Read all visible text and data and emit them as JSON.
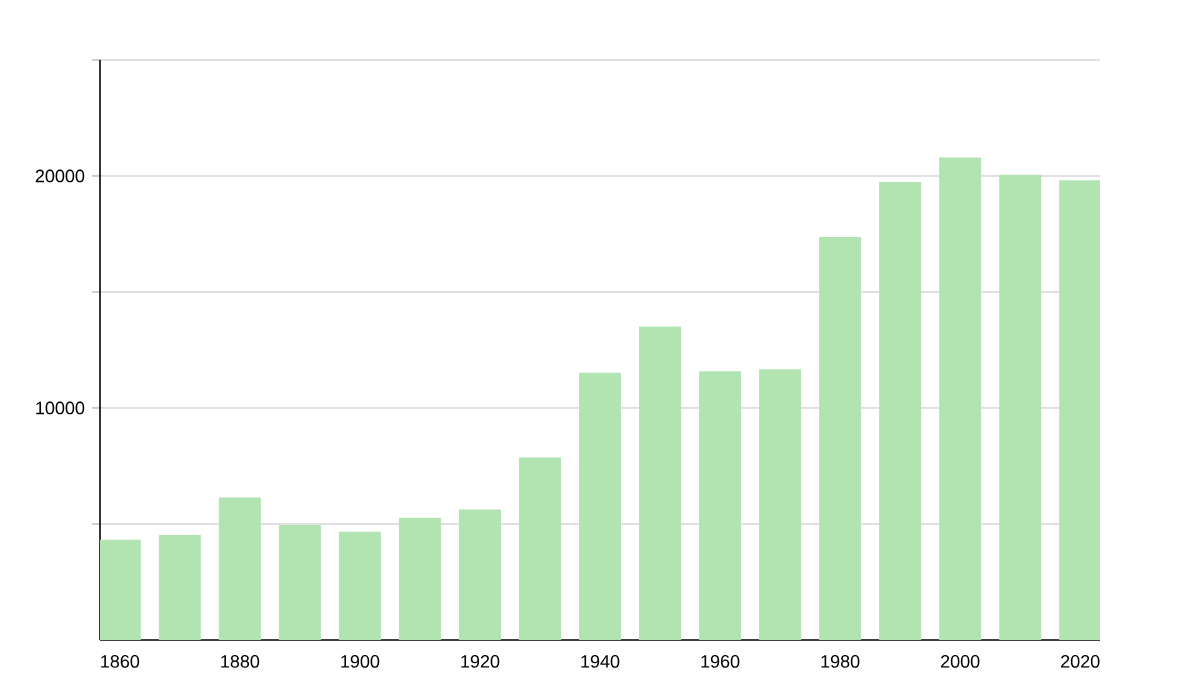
{
  "chart_data": {
    "type": "bar",
    "x": [
      1860,
      1870,
      1880,
      1890,
      1900,
      1910,
      1920,
      1930,
      1940,
      1950,
      1960,
      1970,
      1980,
      1990,
      2000,
      2010,
      2020
    ],
    "values": [
      4320,
      4520,
      6140,
      4960,
      4670,
      5270,
      5620,
      7870,
      11520,
      13510,
      11580,
      11670,
      17370,
      19740,
      20800,
      20050,
      19820
    ],
    "color": "#b2e4b2",
    "xlim": [
      1856.7,
      2023.3
    ],
    "xticks": [
      1860,
      1880,
      1900,
      1920,
      1940,
      1960,
      1980,
      2000,
      2020
    ],
    "ylim": [
      0,
      25000
    ],
    "yticks": [
      {
        "value": 5000,
        "label": null
      },
      10000,
      {
        "value": 15000,
        "label": null
      },
      20000,
      {
        "value": 25000,
        "label": null
      }
    ],
    "grid": "y"
  }
}
